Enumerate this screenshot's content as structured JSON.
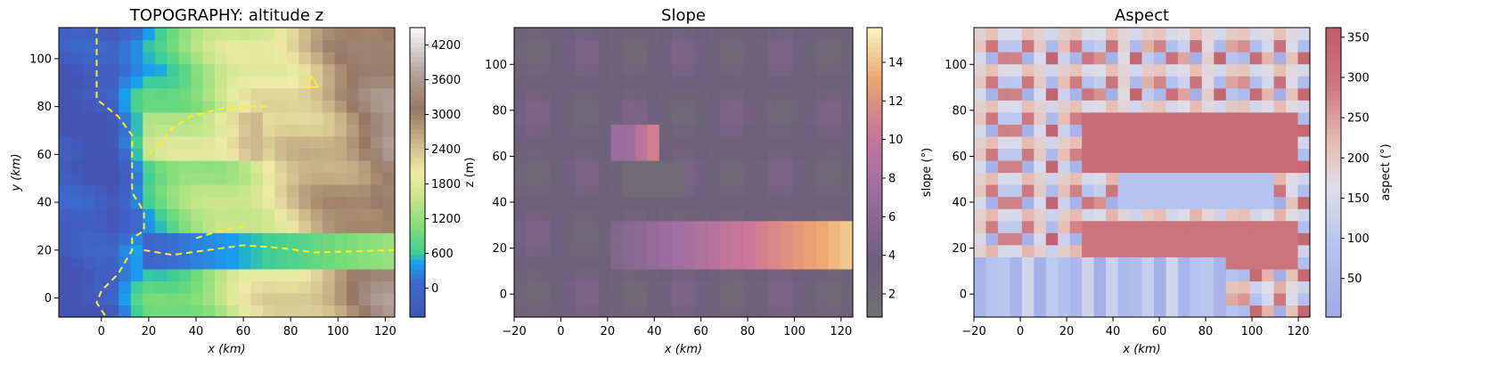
{
  "chart_data": [
    {
      "type": "heatmap",
      "title": "TOPOGRAPHY: altitude z",
      "xlabel": "x (km)",
      "ylabel": "y (km)",
      "xlim": [
        -18,
        124
      ],
      "ylim": [
        -8,
        113
      ],
      "xticks": [
        0,
        20,
        40,
        60,
        80,
        100,
        120
      ],
      "yticks": [
        0,
        20,
        40,
        60,
        80,
        100
      ],
      "colorbar": {
        "label": "z (m)",
        "range": [
          -500,
          4500
        ],
        "ticks": [
          0,
          600,
          1200,
          1800,
          2400,
          3000,
          3600,
          4200
        ],
        "colormap": "terrain"
      },
      "overlays": {
        "lines_color": "#ffee22",
        "coastline": [
          [
            -2,
            113
          ],
          [
            -2,
            83
          ],
          [
            7,
            76
          ],
          [
            13,
            68
          ],
          [
            13,
            44
          ],
          [
            18,
            36
          ],
          [
            18,
            28
          ],
          [
            13,
            25
          ],
          [
            13,
            20
          ],
          [
            7,
            10
          ],
          [
            0,
            3
          ],
          [
            -2,
            -2
          ],
          [
            2,
            -8
          ]
        ],
        "channel_upper": [
          [
            20,
            60
          ],
          [
            25,
            65
          ],
          [
            30,
            71
          ],
          [
            38,
            76
          ],
          [
            50,
            79
          ],
          [
            60,
            80
          ],
          [
            70,
            80
          ]
        ],
        "channel_lower": [
          [
            18,
            20
          ],
          [
            30,
            18
          ],
          [
            45,
            20
          ],
          [
            60,
            22
          ],
          [
            75,
            21
          ],
          [
            90,
            19
          ],
          [
            124,
            20
          ]
        ],
        "channel_small": [
          [
            40,
            25
          ],
          [
            50,
            28
          ],
          [
            60,
            30
          ]
        ],
        "triangle_marker": [
          89,
          90
        ]
      }
    },
    {
      "type": "heatmap",
      "title": "Slope",
      "xlabel": "x (km)",
      "ylabel": "",
      "xlim": [
        -20,
        125
      ],
      "ylim": [
        -10,
        116
      ],
      "xticks": [
        -20,
        0,
        20,
        40,
        60,
        80,
        100,
        120
      ],
      "yticks": [
        0,
        20,
        40,
        60,
        80,
        100
      ],
      "colorbar": {
        "label": "slope (°)",
        "range": [
          0.8,
          15.8
        ],
        "ticks": [
          2,
          4,
          6,
          8,
          10,
          12,
          14
        ],
        "colormap": "magma (alpha)"
      }
    },
    {
      "type": "heatmap",
      "title": "Aspect",
      "xlabel": "x (km)",
      "ylabel": "",
      "xlim": [
        -20,
        125
      ],
      "ylim": [
        -10,
        116
      ],
      "xticks": [
        -20,
        0,
        20,
        40,
        60,
        80,
        100,
        120
      ],
      "yticks": [
        0,
        20,
        40,
        60,
        80,
        100
      ],
      "colorbar": {
        "label": "aspect (°)",
        "range": [
          2,
          362
        ],
        "ticks": [
          50,
          100,
          150,
          200,
          250,
          300,
          350
        ],
        "colormap": "coolwarm (alpha)"
      }
    }
  ]
}
